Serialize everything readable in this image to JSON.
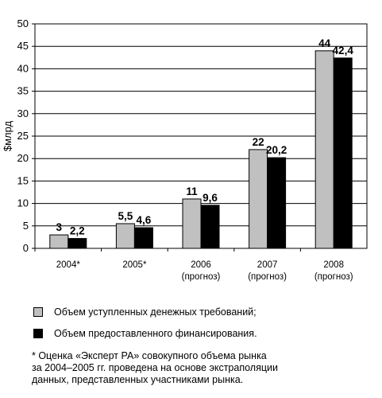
{
  "chart_data": {
    "type": "bar",
    "categories": [
      [
        "2004*"
      ],
      [
        "2005*"
      ],
      [
        "2006",
        "(прогноз)"
      ],
      [
        "2007",
        "(прогноз)"
      ],
      [
        "2008",
        "(прогноз)"
      ]
    ],
    "ylabel": "$млрд",
    "ylim": [
      0,
      50
    ],
    "yticks": [
      0,
      5,
      10,
      15,
      20,
      25,
      30,
      35,
      40,
      45,
      50
    ],
    "grid": true,
    "series": [
      {
        "name": "Объем уступленных денежных требований;",
        "color": "#c0c0c0",
        "values": [
          3,
          5.5,
          11,
          22,
          44
        ],
        "labels": [
          "3",
          "5,5",
          "11",
          "22",
          "44"
        ],
        "bar_heights": [
          3,
          5.5,
          11,
          22,
          44
        ]
      },
      {
        "name": "Объем предоставленного финансирования.",
        "color": "#000000",
        "values": [
          2.2,
          4.6,
          9.6,
          20.2,
          42.4
        ],
        "labels": [
          "2,2",
          "4,6",
          "9,6",
          "20,2",
          "42,4"
        ],
        "bar_heights": [
          2.2,
          4.6,
          9.6,
          20.2,
          42.4
        ]
      }
    ]
  },
  "footnote": [
    "* Оценка «Эксперт РА» совокупного объема рынка",
    "за 2004–2005 гг. проведена на основе экстраполяции",
    "данных, представленных участниками рынка."
  ]
}
